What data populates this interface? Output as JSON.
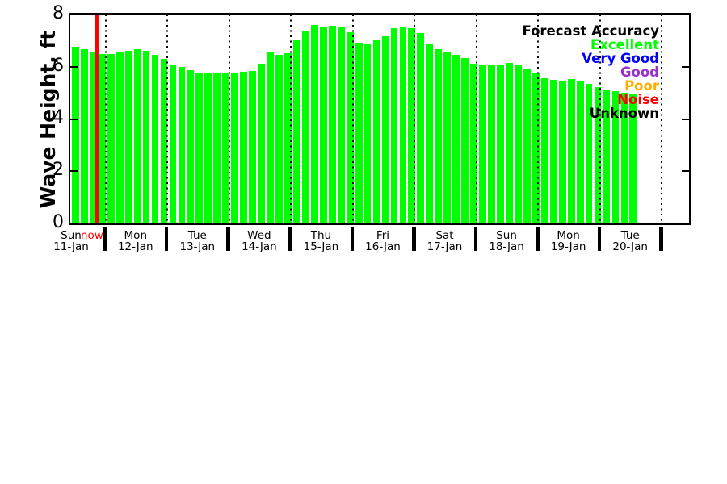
{
  "chart_data": {
    "type": "bar",
    "title": "",
    "ylabel": "Wave Height, ft",
    "xlabel": "",
    "ylim": [
      0,
      8
    ],
    "yticks": [
      0,
      2,
      4,
      6,
      8
    ],
    "grid": "vertical dotted lines at day boundaries",
    "bar_color": "#00ff00",
    "axis_color": "#000000",
    "now_marker": {
      "label": "now",
      "color": "#ff0000"
    },
    "days": [
      {
        "name": "Sun",
        "date": "11-Jan",
        "values": [
          6.76,
          6.66,
          6.58,
          6.5
        ]
      },
      {
        "name": "Mon",
        "date": "12-Jan",
        "values": [
          6.5,
          6.55,
          6.62,
          6.68,
          6.6,
          6.45,
          6.31
        ]
      },
      {
        "name": "Tue",
        "date": "13-Jan",
        "values": [
          6.1,
          5.99,
          5.88,
          5.79,
          5.75,
          5.75,
          5.77
        ]
      },
      {
        "name": "Wed",
        "date": "14-Jan",
        "values": [
          5.78,
          5.8,
          5.85,
          6.13,
          6.55,
          6.46,
          6.52
        ]
      },
      {
        "name": "Thu",
        "date": "15-Jan",
        "values": [
          7.02,
          7.35,
          7.6,
          7.53,
          7.58,
          7.5,
          7.31
        ]
      },
      {
        "name": "Fri",
        "date": "16-Jan",
        "values": [
          6.92,
          6.86,
          7.01,
          7.16,
          7.46,
          7.52,
          7.46
        ]
      },
      {
        "name": "Sat",
        "date": "17-Jan",
        "values": [
          7.28,
          6.89,
          6.66,
          6.55,
          6.46,
          6.33,
          6.11
        ]
      },
      {
        "name": "Sun",
        "date": "18-Jan",
        "values": [
          6.08,
          6.06,
          6.1,
          6.16,
          6.08,
          5.92,
          5.77
        ]
      },
      {
        "name": "Mon",
        "date": "19-Jan",
        "values": [
          5.55,
          5.49,
          5.43,
          5.52,
          5.47,
          5.34,
          5.21
        ]
      },
      {
        "name": "Tue",
        "date": "20-Jan",
        "values": [
          5.14,
          5.06,
          5.0,
          4.95
        ]
      }
    ],
    "legend": {
      "title": "Forecast Accuracy",
      "position": "upper right",
      "entries": [
        {
          "label": "Excellent",
          "color": "#00ff00"
        },
        {
          "label": "Very Good",
          "color": "#0000ff"
        },
        {
          "label": "Good",
          "color": "#9932cc"
        },
        {
          "label": "Poor",
          "color": "#ffae00"
        },
        {
          "label": "Noise",
          "color": "#ff0000"
        },
        {
          "label": "Unknown",
          "color": "#000000"
        }
      ]
    }
  }
}
